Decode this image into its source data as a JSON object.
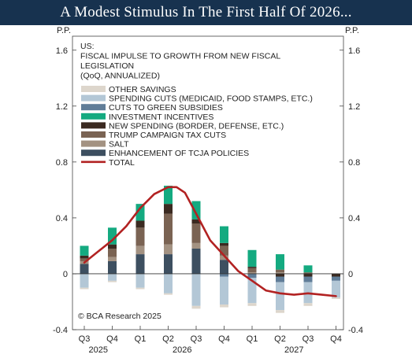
{
  "page": {
    "title": "A Modest Stimulus In The First Half Of 2026..."
  },
  "chart_data": {
    "type": "bar",
    "stacked": true,
    "left_axis_label": "P.P.",
    "right_axis_label": "P.P.",
    "ylim": [
      -0.4,
      1.7
    ],
    "yticks": [
      -0.4,
      0,
      0.4,
      0.8,
      1.2,
      1.6
    ],
    "ytick_labels": [
      "-0.4",
      "0",
      "0.4",
      "0.8",
      "1.2",
      "1.6"
    ],
    "categories": [
      "Q3",
      "Q4",
      "Q1",
      "Q2",
      "Q3",
      "Q4",
      "Q1",
      "Q2",
      "Q3",
      "Q4"
    ],
    "year_labels": [
      {
        "label": "2025",
        "from": 0,
        "to": 1
      },
      {
        "label": "2026",
        "from": 2,
        "to": 5
      },
      {
        "label": "2027",
        "from": 6,
        "to": 9
      }
    ],
    "note_lines": [
      "US:",
      "FISCAL IMPULSE TO GROWTH FROM NEW FISCAL",
      "LEGISLATION",
      "(QoQ, ANNUALIZED)"
    ],
    "source": "© BCA Research 2025",
    "series": [
      {
        "name": "OTHER SAVINGS",
        "color": "#ddd6cc",
        "values": [
          -0.01,
          -0.01,
          -0.01,
          -0.01,
          -0.02,
          -0.02,
          -0.02,
          -0.02,
          -0.02,
          -0.01
        ]
      },
      {
        "name": "SPENDING CUTS (MEDICAID, FOOD STAMPS, ETC.)",
        "color": "#b3c7d6",
        "values": [
          -0.1,
          -0.05,
          -0.1,
          -0.14,
          -0.23,
          -0.2,
          -0.18,
          -0.2,
          -0.15,
          -0.12
        ]
      },
      {
        "name": "CUTS TO GREEN SUBSIDIES",
        "color": "#607d98",
        "values": [
          0,
          0,
          0,
          0,
          0,
          -0.02,
          -0.03,
          -0.04,
          -0.04,
          -0.03
        ]
      },
      {
        "name": "INVESTMENT INCENTIVES",
        "color": "#14aa80",
        "values": [
          0.07,
          0.12,
          0.12,
          0.13,
          0.13,
          0.12,
          0.12,
          0.11,
          0.05,
          0
        ]
      },
      {
        "name": "NEW SPENDING (BORDER, DEFENSE, ETC.)",
        "color": "#3b2a21",
        "values": [
          0.02,
          0.03,
          0.05,
          0.07,
          0.03,
          0.02,
          0.01,
          -0.02,
          -0.02,
          -0.02
        ]
      },
      {
        "name": "TRUMP CAMPAIGN TAX CUTS",
        "color": "#7a6353",
        "values": [
          0.02,
          0.06,
          0.13,
          0.22,
          0.14,
          0.07,
          0.03,
          0.02,
          0.01,
          0
        ]
      },
      {
        "name": "SALT",
        "color": "#a39282",
        "values": [
          0.02,
          0.03,
          0.06,
          0.07,
          0.04,
          0.03,
          0.01,
          0.01,
          0,
          0
        ]
      },
      {
        "name": "ENHANCEMENT OF TCJA POLICIES",
        "color": "#3d4f60",
        "values": [
          0.07,
          0.09,
          0.14,
          0.14,
          0.18,
          0.1,
          0,
          0,
          0,
          0
        ]
      },
      {
        "name": "TOTAL",
        "color": "#b22222",
        "kind": "line",
        "x": [
          0,
          0.5,
          1,
          1.5,
          2,
          2.5,
          3,
          3.3,
          3.6,
          4,
          4.5,
          5,
          5.5,
          6,
          6.5,
          7,
          7.5,
          8,
          8.5,
          9
        ],
        "values": [
          0.08,
          0.16,
          0.24,
          0.34,
          0.47,
          0.57,
          0.62,
          0.62,
          0.58,
          0.43,
          0.24,
          0.13,
          0.02,
          -0.05,
          -0.12,
          -0.14,
          -0.15,
          -0.14,
          -0.15,
          -0.16
        ]
      }
    ]
  }
}
